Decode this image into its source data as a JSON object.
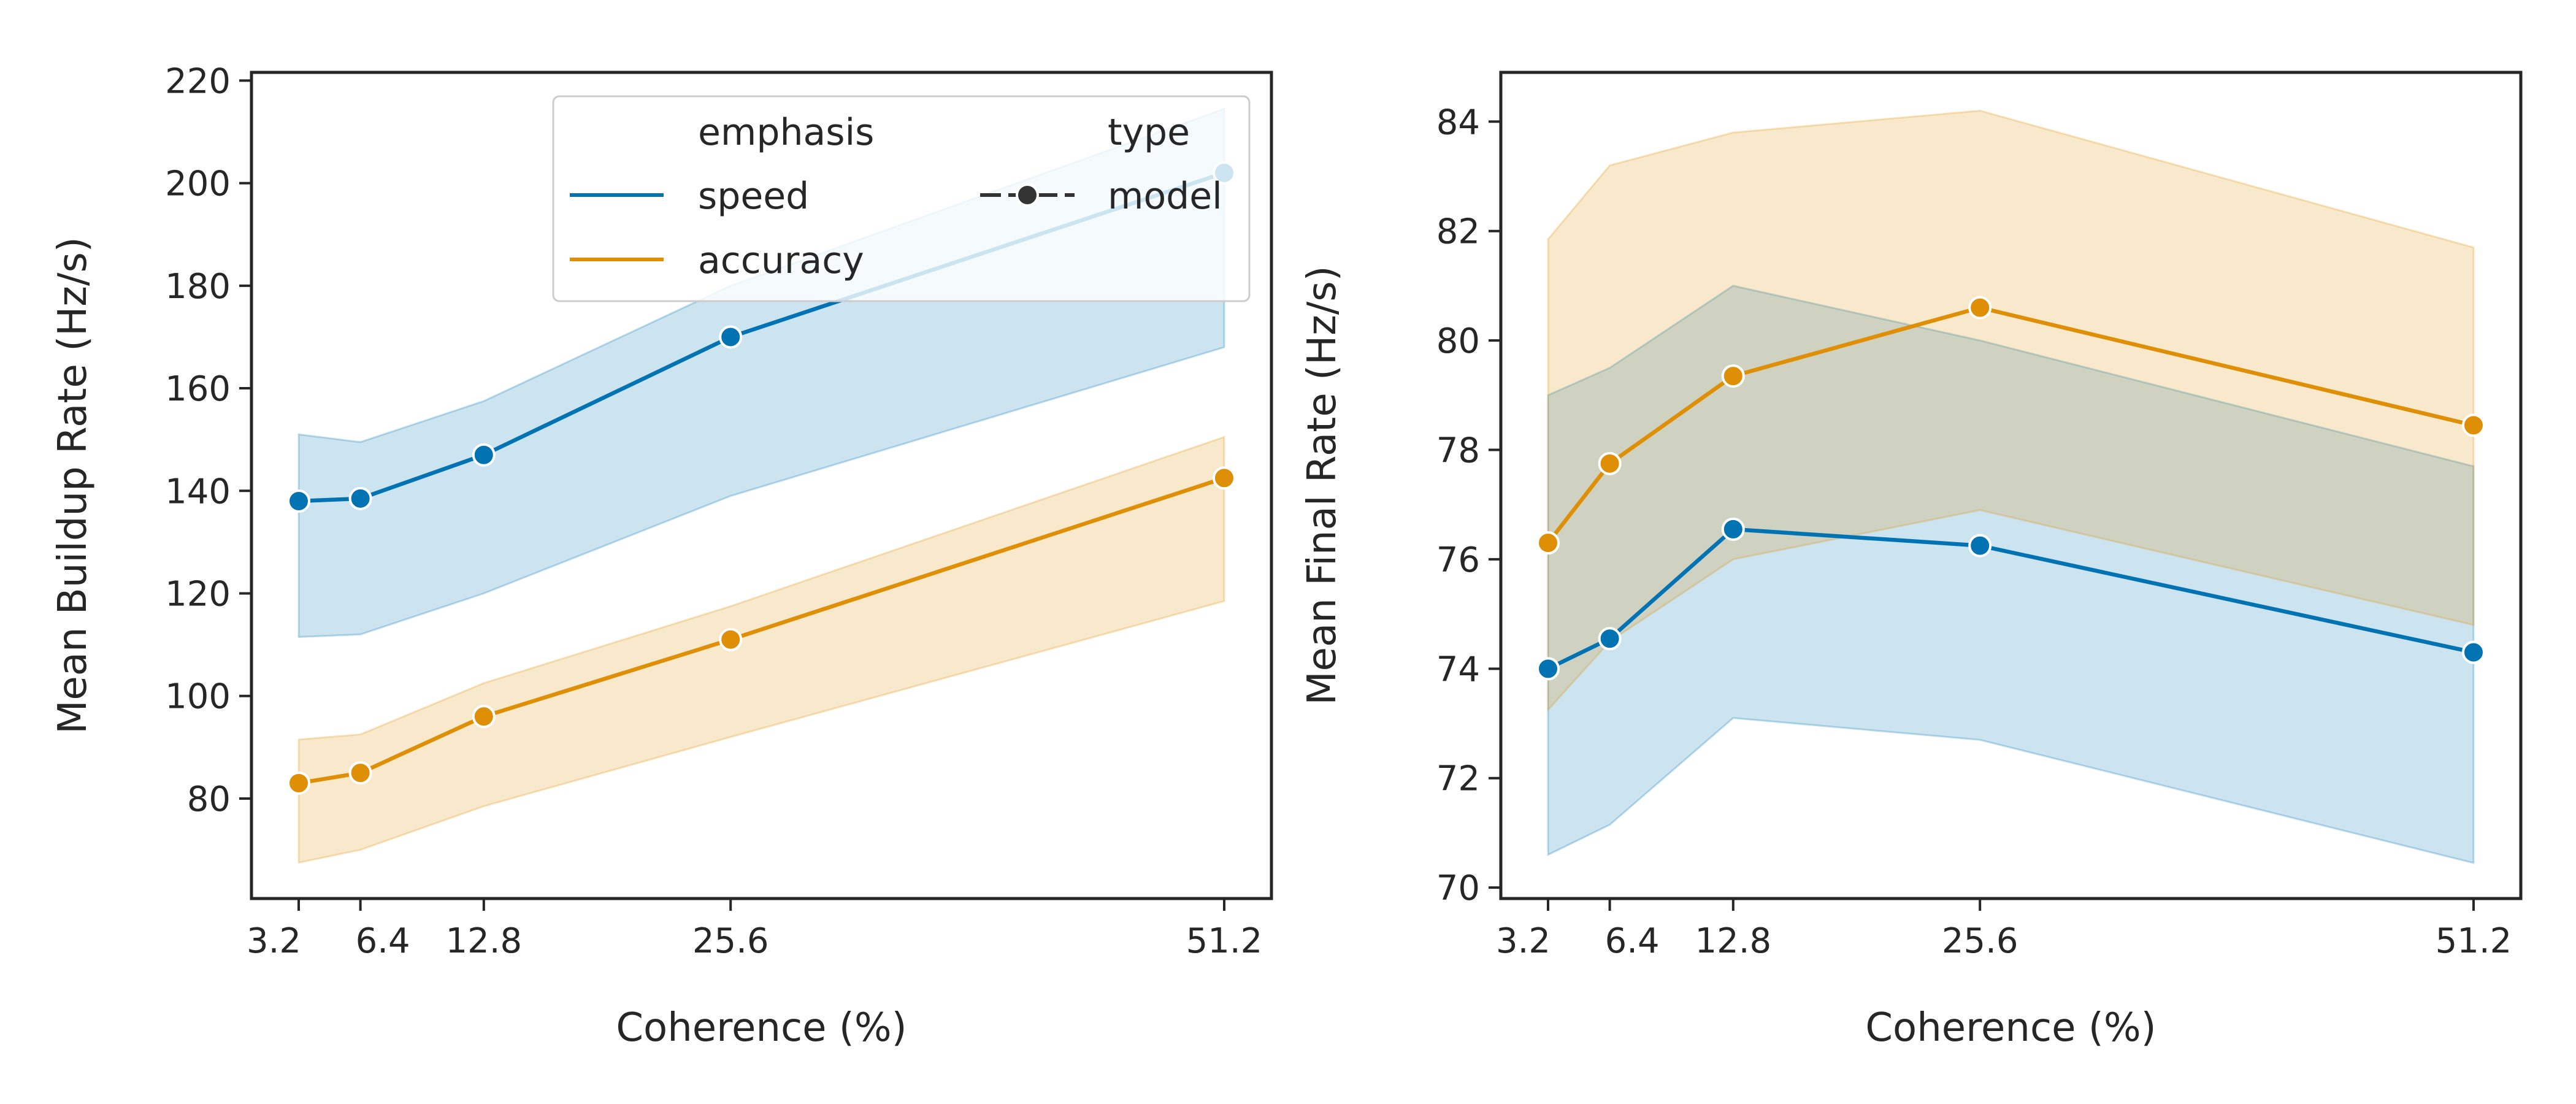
{
  "figure": {
    "legend": {
      "emphasis_title": "emphasis",
      "type_title": "type",
      "speed_label": "speed",
      "accuracy_label": "accuracy",
      "model_label": "model"
    }
  },
  "colors": {
    "speed": "#0173b2",
    "accuracy": "#de8f05",
    "axis": "#262626",
    "marker_edge": "#ffffff"
  },
  "chart_data": [
    {
      "type": "line",
      "xlabel": "Coherence (%)",
      "ylabel": "Mean Buildup Rate (Hz/s)",
      "x": [
        3.2,
        6.4,
        12.8,
        25.6,
        51.2
      ],
      "xtick_labels": [
        "3.2",
        "6.4",
        "12.8",
        "25.6",
        "51.2"
      ],
      "xlim": [
        0.75,
        53.65
      ],
      "ylim": [
        60.5,
        221.6
      ],
      "yticks": [
        80,
        100,
        120,
        140,
        160,
        180,
        200,
        220
      ],
      "grid": false,
      "legend_position": "upper right",
      "series": [
        {
          "name": "speed",
          "color_key": "speed",
          "values": [
            138,
            138.5,
            147,
            170,
            202
          ],
          "ci_low": [
            111.5,
            112,
            120,
            139,
            168
          ],
          "ci_high": [
            151,
            149.5,
            157.5,
            180,
            214.5
          ]
        },
        {
          "name": "accuracy",
          "color_key": "accuracy",
          "values": [
            83,
            85,
            96,
            111,
            142.5
          ],
          "ci_low": [
            67.5,
            70,
            78.5,
            92,
            118.5
          ],
          "ci_high": [
            91.5,
            92.5,
            102.5,
            117.5,
            150.5
          ]
        }
      ]
    },
    {
      "type": "line",
      "xlabel": "Coherence (%)",
      "ylabel": "Mean Final Rate (Hz/s)",
      "x": [
        3.2,
        6.4,
        12.8,
        25.6,
        51.2
      ],
      "xtick_labels": [
        "3.2",
        "6.4",
        "12.8",
        "25.6",
        "51.2"
      ],
      "xlim": [
        0.75,
        53.65
      ],
      "ylim": [
        69.8,
        84.9
      ],
      "yticks": [
        70,
        72,
        74,
        76,
        78,
        80,
        82,
        84
      ],
      "grid": false,
      "series": [
        {
          "name": "speed",
          "color_key": "speed",
          "values": [
            74,
            74.55,
            76.55,
            76.25,
            74.3
          ],
          "ci_low": [
            70.6,
            71.15,
            73.1,
            72.7,
            70.45
          ],
          "ci_high": [
            79,
            79.5,
            81,
            80,
            77.7
          ]
        },
        {
          "name": "accuracy",
          "color_key": "accuracy",
          "values": [
            76.3,
            77.75,
            79.35,
            80.6,
            78.45
          ],
          "ci_low": [
            73.25,
            74.5,
            76,
            76.9,
            74.8
          ],
          "ci_high": [
            81.85,
            83.2,
            83.8,
            84.2,
            81.7
          ]
        }
      ]
    }
  ]
}
